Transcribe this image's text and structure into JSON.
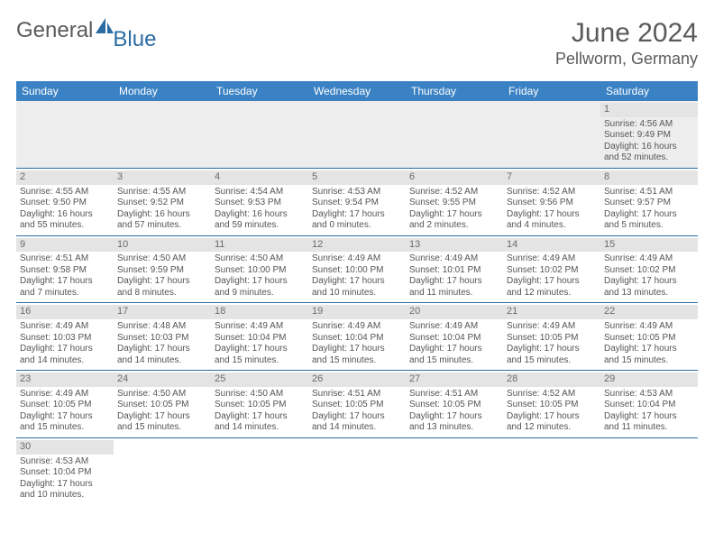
{
  "logo": {
    "text1": "General",
    "text2": "Blue",
    "color1": "#5a5a5a",
    "color2": "#2b6ca3"
  },
  "header": {
    "month": "June 2024",
    "location": "Pellworm, Germany"
  },
  "calendar": {
    "header_bg": "#3b82c4",
    "header_fg": "#ffffff",
    "daynum_bg": "#e4e4e4",
    "rule_color": "#2b6ca3",
    "days": [
      "Sunday",
      "Monday",
      "Tuesday",
      "Wednesday",
      "Thursday",
      "Friday",
      "Saturday"
    ],
    "weeks": [
      [
        null,
        null,
        null,
        null,
        null,
        null,
        {
          "n": "1",
          "sr": "Sunrise: 4:56 AM",
          "ss": "Sunset: 9:49 PM",
          "d1": "Daylight: 16 hours",
          "d2": "and 52 minutes."
        }
      ],
      [
        {
          "n": "2",
          "sr": "Sunrise: 4:55 AM",
          "ss": "Sunset: 9:50 PM",
          "d1": "Daylight: 16 hours",
          "d2": "and 55 minutes."
        },
        {
          "n": "3",
          "sr": "Sunrise: 4:55 AM",
          "ss": "Sunset: 9:52 PM",
          "d1": "Daylight: 16 hours",
          "d2": "and 57 minutes."
        },
        {
          "n": "4",
          "sr": "Sunrise: 4:54 AM",
          "ss": "Sunset: 9:53 PM",
          "d1": "Daylight: 16 hours",
          "d2": "and 59 minutes."
        },
        {
          "n": "5",
          "sr": "Sunrise: 4:53 AM",
          "ss": "Sunset: 9:54 PM",
          "d1": "Daylight: 17 hours",
          "d2": "and 0 minutes."
        },
        {
          "n": "6",
          "sr": "Sunrise: 4:52 AM",
          "ss": "Sunset: 9:55 PM",
          "d1": "Daylight: 17 hours",
          "d2": "and 2 minutes."
        },
        {
          "n": "7",
          "sr": "Sunrise: 4:52 AM",
          "ss": "Sunset: 9:56 PM",
          "d1": "Daylight: 17 hours",
          "d2": "and 4 minutes."
        },
        {
          "n": "8",
          "sr": "Sunrise: 4:51 AM",
          "ss": "Sunset: 9:57 PM",
          "d1": "Daylight: 17 hours",
          "d2": "and 5 minutes."
        }
      ],
      [
        {
          "n": "9",
          "sr": "Sunrise: 4:51 AM",
          "ss": "Sunset: 9:58 PM",
          "d1": "Daylight: 17 hours",
          "d2": "and 7 minutes."
        },
        {
          "n": "10",
          "sr": "Sunrise: 4:50 AM",
          "ss": "Sunset: 9:59 PM",
          "d1": "Daylight: 17 hours",
          "d2": "and 8 minutes."
        },
        {
          "n": "11",
          "sr": "Sunrise: 4:50 AM",
          "ss": "Sunset: 10:00 PM",
          "d1": "Daylight: 17 hours",
          "d2": "and 9 minutes."
        },
        {
          "n": "12",
          "sr": "Sunrise: 4:49 AM",
          "ss": "Sunset: 10:00 PM",
          "d1": "Daylight: 17 hours",
          "d2": "and 10 minutes."
        },
        {
          "n": "13",
          "sr": "Sunrise: 4:49 AM",
          "ss": "Sunset: 10:01 PM",
          "d1": "Daylight: 17 hours",
          "d2": "and 11 minutes."
        },
        {
          "n": "14",
          "sr": "Sunrise: 4:49 AM",
          "ss": "Sunset: 10:02 PM",
          "d1": "Daylight: 17 hours",
          "d2": "and 12 minutes."
        },
        {
          "n": "15",
          "sr": "Sunrise: 4:49 AM",
          "ss": "Sunset: 10:02 PM",
          "d1": "Daylight: 17 hours",
          "d2": "and 13 minutes."
        }
      ],
      [
        {
          "n": "16",
          "sr": "Sunrise: 4:49 AM",
          "ss": "Sunset: 10:03 PM",
          "d1": "Daylight: 17 hours",
          "d2": "and 14 minutes."
        },
        {
          "n": "17",
          "sr": "Sunrise: 4:48 AM",
          "ss": "Sunset: 10:03 PM",
          "d1": "Daylight: 17 hours",
          "d2": "and 14 minutes."
        },
        {
          "n": "18",
          "sr": "Sunrise: 4:49 AM",
          "ss": "Sunset: 10:04 PM",
          "d1": "Daylight: 17 hours",
          "d2": "and 15 minutes."
        },
        {
          "n": "19",
          "sr": "Sunrise: 4:49 AM",
          "ss": "Sunset: 10:04 PM",
          "d1": "Daylight: 17 hours",
          "d2": "and 15 minutes."
        },
        {
          "n": "20",
          "sr": "Sunrise: 4:49 AM",
          "ss": "Sunset: 10:04 PM",
          "d1": "Daylight: 17 hours",
          "d2": "and 15 minutes."
        },
        {
          "n": "21",
          "sr": "Sunrise: 4:49 AM",
          "ss": "Sunset: 10:05 PM",
          "d1": "Daylight: 17 hours",
          "d2": "and 15 minutes."
        },
        {
          "n": "22",
          "sr": "Sunrise: 4:49 AM",
          "ss": "Sunset: 10:05 PM",
          "d1": "Daylight: 17 hours",
          "d2": "and 15 minutes."
        }
      ],
      [
        {
          "n": "23",
          "sr": "Sunrise: 4:49 AM",
          "ss": "Sunset: 10:05 PM",
          "d1": "Daylight: 17 hours",
          "d2": "and 15 minutes."
        },
        {
          "n": "24",
          "sr": "Sunrise: 4:50 AM",
          "ss": "Sunset: 10:05 PM",
          "d1": "Daylight: 17 hours",
          "d2": "and 15 minutes."
        },
        {
          "n": "25",
          "sr": "Sunrise: 4:50 AM",
          "ss": "Sunset: 10:05 PM",
          "d1": "Daylight: 17 hours",
          "d2": "and 14 minutes."
        },
        {
          "n": "26",
          "sr": "Sunrise: 4:51 AM",
          "ss": "Sunset: 10:05 PM",
          "d1": "Daylight: 17 hours",
          "d2": "and 14 minutes."
        },
        {
          "n": "27",
          "sr": "Sunrise: 4:51 AM",
          "ss": "Sunset: 10:05 PM",
          "d1": "Daylight: 17 hours",
          "d2": "and 13 minutes."
        },
        {
          "n": "28",
          "sr": "Sunrise: 4:52 AM",
          "ss": "Sunset: 10:05 PM",
          "d1": "Daylight: 17 hours",
          "d2": "and 12 minutes."
        },
        {
          "n": "29",
          "sr": "Sunrise: 4:53 AM",
          "ss": "Sunset: 10:04 PM",
          "d1": "Daylight: 17 hours",
          "d2": "and 11 minutes."
        }
      ],
      [
        {
          "n": "30",
          "sr": "Sunrise: 4:53 AM",
          "ss": "Sunset: 10:04 PM",
          "d1": "Daylight: 17 hours",
          "d2": "and 10 minutes."
        },
        null,
        null,
        null,
        null,
        null,
        null
      ]
    ]
  }
}
